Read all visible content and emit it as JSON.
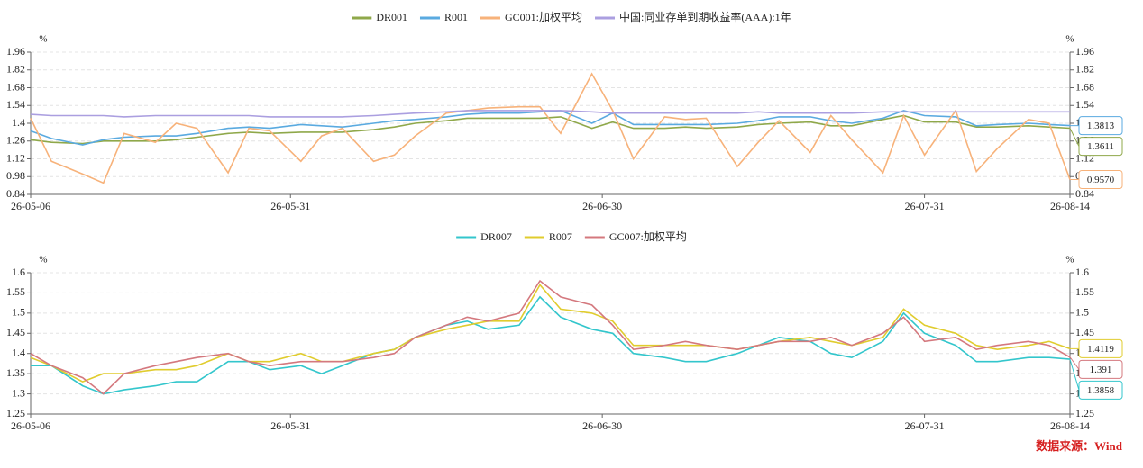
{
  "source": "数据来源：Wind",
  "chart_data": [
    {
      "type": "line",
      "y_unit": "%",
      "x": [
        "26-05-06",
        "26-05-08",
        "26-05-11",
        "26-05-13",
        "26-05-15",
        "26-05-18",
        "26-05-20",
        "26-05-22",
        "26-05-25",
        "26-05-27",
        "26-05-29",
        "26-06-01",
        "26-06-03",
        "26-06-05",
        "26-06-08",
        "26-06-10",
        "26-06-12",
        "26-06-15",
        "26-06-17",
        "26-06-19",
        "26-06-22",
        "26-06-24",
        "26-06-26",
        "26-06-29",
        "26-07-01",
        "26-07-03",
        "26-07-06",
        "26-07-08",
        "26-07-10",
        "26-07-13",
        "26-07-15",
        "26-07-17",
        "26-07-20",
        "26-07-22",
        "26-07-24",
        "26-07-27",
        "26-07-29",
        "26-07-31",
        "26-08-03",
        "26-08-05",
        "26-08-07",
        "26-08-10",
        "26-08-12",
        "26-08-14"
      ],
      "xlim": [
        "26-05-06",
        "26-08-14"
      ],
      "xticks": [
        "26-05-06",
        "26-05-31",
        "26-06-30",
        "26-07-31",
        "26-08-14"
      ],
      "ylim": [
        0.84,
        1.96
      ],
      "yticks": [
        0.84,
        0.98,
        1.12,
        1.26,
        1.4,
        1.54,
        1.68,
        1.82,
        1.96
      ],
      "grid": true,
      "series": [
        {
          "name": "DR001",
          "color": "#8fa84a",
          "end_label": true,
          "values": [
            1.27,
            1.25,
            1.24,
            1.26,
            1.26,
            1.26,
            1.27,
            1.29,
            1.32,
            1.33,
            1.32,
            1.33,
            1.33,
            1.33,
            1.35,
            1.37,
            1.4,
            1.42,
            1.44,
            1.44,
            1.44,
            1.44,
            1.45,
            1.36,
            1.41,
            1.36,
            1.36,
            1.37,
            1.36,
            1.37,
            1.39,
            1.4,
            1.41,
            1.38,
            1.38,
            1.43,
            1.46,
            1.41,
            1.41,
            1.37,
            1.37,
            1.38,
            1.37,
            1.3611
          ]
        },
        {
          "name": "R001",
          "color": "#5aaae0",
          "end_label": true,
          "values": [
            1.34,
            1.28,
            1.23,
            1.27,
            1.29,
            1.3,
            1.3,
            1.32,
            1.36,
            1.37,
            1.36,
            1.39,
            1.38,
            1.37,
            1.4,
            1.42,
            1.43,
            1.45,
            1.47,
            1.48,
            1.48,
            1.49,
            1.5,
            1.4,
            1.48,
            1.39,
            1.39,
            1.39,
            1.39,
            1.4,
            1.42,
            1.45,
            1.45,
            1.42,
            1.4,
            1.44,
            1.5,
            1.46,
            1.45,
            1.38,
            1.39,
            1.4,
            1.39,
            1.3813
          ]
        },
        {
          "name": "GC001:加权平均",
          "color": "#f7b27a",
          "end_label": true,
          "values": [
            1.44,
            1.1,
            1.0,
            0.93,
            1.32,
            1.25,
            1.4,
            1.36,
            1.01,
            1.36,
            1.34,
            1.1,
            1.3,
            1.36,
            1.1,
            1.15,
            1.3,
            1.48,
            1.5,
            1.52,
            1.53,
            1.53,
            1.32,
            1.79,
            1.5,
            1.12,
            1.45,
            1.43,
            1.44,
            1.06,
            1.25,
            1.42,
            1.17,
            1.46,
            1.27,
            1.01,
            1.46,
            1.15,
            1.5,
            1.02,
            1.2,
            1.43,
            1.4,
            0.957
          ],
          "value_labels": [
            null,
            null,
            null,
            null,
            null,
            null,
            null,
            null,
            null,
            null,
            null,
            null,
            null,
            null,
            null,
            null,
            null,
            null,
            null,
            null,
            null,
            null,
            null,
            null,
            null,
            null,
            null,
            null,
            null,
            null,
            null,
            null,
            null,
            null,
            null,
            null,
            null,
            null,
            null,
            null,
            null,
            null,
            null,
            "0.9570"
          ]
        },
        {
          "name": "中国:同业存单到期收益率(AAA):1年",
          "color": "#ab9fe0",
          "end_label": false,
          "values": [
            1.47,
            1.46,
            1.46,
            1.46,
            1.45,
            1.46,
            1.46,
            1.46,
            1.46,
            1.46,
            1.45,
            1.45,
            1.45,
            1.45,
            1.46,
            1.47,
            1.48,
            1.49,
            1.5,
            1.5,
            1.5,
            1.5,
            1.5,
            1.49,
            1.48,
            1.48,
            1.48,
            1.48,
            1.48,
            1.48,
            1.49,
            1.48,
            1.48,
            1.48,
            1.48,
            1.49,
            1.49,
            1.49,
            1.49,
            1.49,
            1.49,
            1.49,
            1.49,
            1.49
          ]
        }
      ]
    },
    {
      "type": "line",
      "y_unit": "%",
      "x": [
        "26-05-06",
        "26-05-08",
        "26-05-11",
        "26-05-13",
        "26-05-15",
        "26-05-18",
        "26-05-20",
        "26-05-22",
        "26-05-25",
        "26-05-27",
        "26-05-29",
        "26-06-01",
        "26-06-03",
        "26-06-05",
        "26-06-08",
        "26-06-10",
        "26-06-12",
        "26-06-15",
        "26-06-17",
        "26-06-19",
        "26-06-22",
        "26-06-24",
        "26-06-26",
        "26-06-29",
        "26-07-01",
        "26-07-03",
        "26-07-06",
        "26-07-08",
        "26-07-10",
        "26-07-13",
        "26-07-15",
        "26-07-17",
        "26-07-20",
        "26-07-22",
        "26-07-24",
        "26-07-27",
        "26-07-29",
        "26-07-31",
        "26-08-03",
        "26-08-05",
        "26-08-07",
        "26-08-10",
        "26-08-12",
        "26-08-14"
      ],
      "xlim": [
        "26-05-06",
        "26-08-14"
      ],
      "xticks": [
        "26-05-06",
        "26-05-31",
        "26-06-30",
        "26-07-31",
        "26-08-14"
      ],
      "ylim": [
        1.25,
        1.6
      ],
      "yticks": [
        1.25,
        1.3,
        1.35,
        1.4,
        1.45,
        1.5,
        1.55,
        1.6
      ],
      "grid": true,
      "series": [
        {
          "name": "DR007",
          "color": "#33c6cc",
          "end_label": true,
          "values": [
            1.37,
            1.37,
            1.32,
            1.3,
            1.31,
            1.32,
            1.33,
            1.33,
            1.38,
            1.38,
            1.36,
            1.37,
            1.35,
            1.37,
            1.4,
            1.41,
            1.44,
            1.47,
            1.48,
            1.46,
            1.47,
            1.54,
            1.49,
            1.46,
            1.45,
            1.4,
            1.39,
            1.38,
            1.38,
            1.4,
            1.42,
            1.44,
            1.43,
            1.4,
            1.39,
            1.43,
            1.5,
            1.45,
            1.42,
            1.38,
            1.38,
            1.39,
            1.39,
            1.3858
          ]
        },
        {
          "name": "R007",
          "color": "#e0cc2e",
          "end_label": true,
          "values": [
            1.39,
            1.37,
            1.33,
            1.35,
            1.35,
            1.36,
            1.36,
            1.37,
            1.4,
            1.38,
            1.38,
            1.4,
            1.38,
            1.38,
            1.4,
            1.41,
            1.44,
            1.46,
            1.47,
            1.48,
            1.48,
            1.57,
            1.51,
            1.5,
            1.48,
            1.42,
            1.42,
            1.42,
            1.42,
            1.41,
            1.42,
            1.43,
            1.44,
            1.43,
            1.42,
            1.44,
            1.51,
            1.47,
            1.45,
            1.42,
            1.41,
            1.42,
            1.43,
            1.4119
          ]
        },
        {
          "name": "GC007:加权平均",
          "color": "#d4787e",
          "end_label": true,
          "values": [
            1.4,
            1.37,
            1.34,
            1.3,
            1.35,
            1.37,
            1.38,
            1.39,
            1.4,
            1.38,
            1.37,
            1.38,
            1.38,
            1.38,
            1.39,
            1.4,
            1.44,
            1.47,
            1.49,
            1.48,
            1.5,
            1.58,
            1.54,
            1.52,
            1.47,
            1.41,
            1.42,
            1.43,
            1.42,
            1.41,
            1.42,
            1.43,
            1.43,
            1.44,
            1.42,
            1.45,
            1.49,
            1.43,
            1.44,
            1.41,
            1.42,
            1.43,
            1.42,
            1.391
          ]
        }
      ]
    }
  ]
}
